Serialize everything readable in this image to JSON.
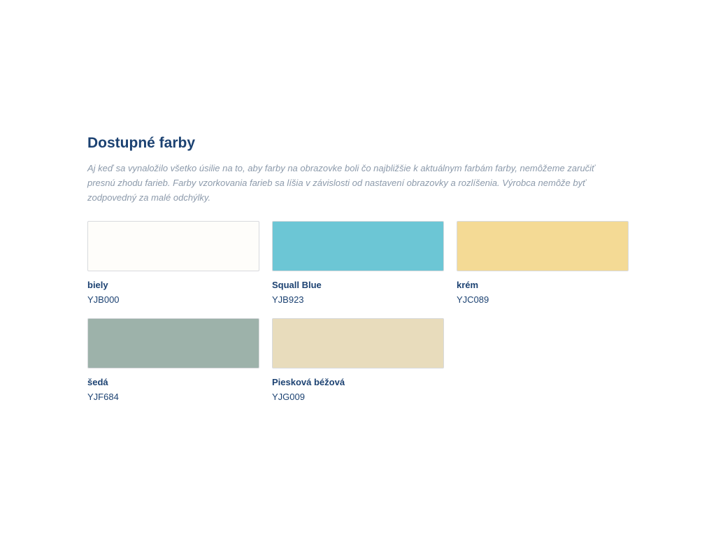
{
  "section": {
    "title": "Dostupné farby",
    "disclaimer": "Aj keď sa vynaložilo všetko úsilie na to, aby farby na obrazovke boli čo najbližšie k aktuálnym farbám farby, nemôžeme zaručiť presnú zhodu farieb. Farby vzorkovania farieb sa líšia v závislosti od nastavení obrazovky a rozlíšenia. Výrobca nemôže byť zodpovedný za malé odchýlky."
  },
  "colors": [
    {
      "name": "biely",
      "code": "YJB000",
      "hex": "#fefdfa"
    },
    {
      "name": "Squall Blue",
      "code": "YJB923",
      "hex": "#6cc6d5"
    },
    {
      "name": "krém",
      "code": "YJC089",
      "hex": "#f4da95"
    },
    {
      "name": "šedá",
      "code": "YJF684",
      "hex": "#9db2aa"
    },
    {
      "name": "Piesková béžová",
      "code": "YJG009",
      "hex": "#e8dcbc"
    }
  ]
}
